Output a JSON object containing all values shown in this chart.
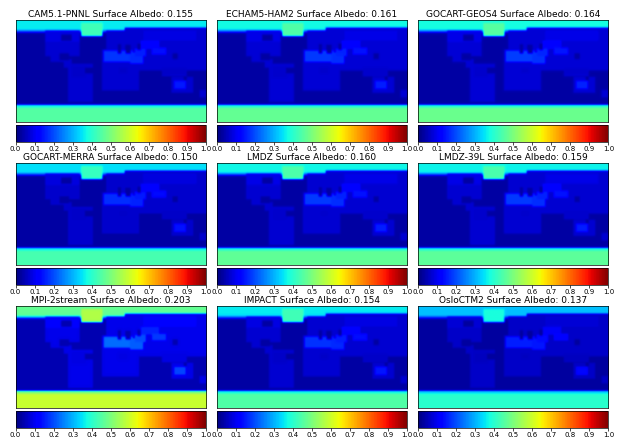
{
  "panels": [
    {
      "title": "CAM5.1-PNNL Surface Albedo: 0.155",
      "mean": 0.155
    },
    {
      "title": "ECHAM5-HAM2 Surface Albedo: 0.161",
      "mean": 0.161
    },
    {
      "title": "GOCART-GEOS4 Surface Albedo: 0.164",
      "mean": 0.164
    },
    {
      "title": "GOCART-MERRA Surface Albedo: 0.150",
      "mean": 0.15
    },
    {
      "title": "LMDZ Surface Albedo: 0.160",
      "mean": 0.16
    },
    {
      "title": "LMDZ-39L Surface Albedo: 0.159",
      "mean": 0.159
    },
    {
      "title": "MPI-2stream Surface Albedo: 0.203",
      "mean": 0.203
    },
    {
      "title": "IMPACT Surface Albedo: 0.154",
      "mean": 0.154
    },
    {
      "title": "OsloCTM2 Surface Albedo: 0.137",
      "mean": 0.137
    }
  ],
  "colorbar_ticks": [
    0.0,
    0.1,
    0.2,
    0.3,
    0.4,
    0.5,
    0.6,
    0.7,
    0.8,
    0.9,
    1.0
  ],
  "vmin": 0.0,
  "vmax": 1.0,
  "cmap": "jet",
  "title_fontsize": 6.5,
  "colorbar_fontsize": 5.0,
  "background_color": "#ffffff",
  "nrows": 3,
  "ncols": 3
}
